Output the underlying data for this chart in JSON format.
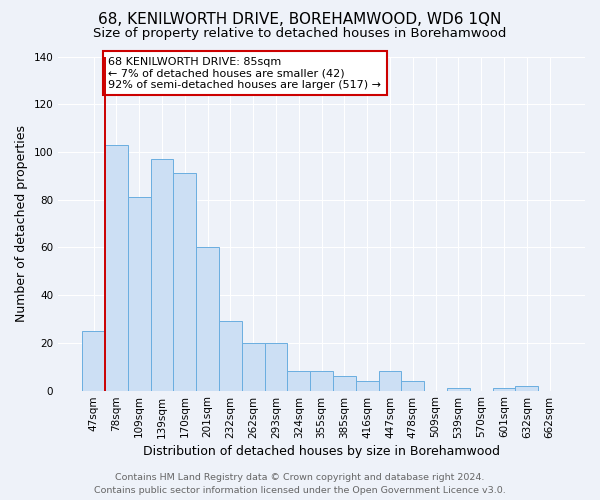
{
  "title": "68, KENILWORTH DRIVE, BOREHAMWOOD, WD6 1QN",
  "subtitle": "Size of property relative to detached houses in Borehamwood",
  "xlabel": "Distribution of detached houses by size in Borehamwood",
  "ylabel": "Number of detached properties",
  "categories": [
    "47sqm",
    "78sqm",
    "109sqm",
    "139sqm",
    "170sqm",
    "201sqm",
    "232sqm",
    "262sqm",
    "293sqm",
    "324sqm",
    "355sqm",
    "385sqm",
    "416sqm",
    "447sqm",
    "478sqm",
    "509sqm",
    "539sqm",
    "570sqm",
    "601sqm",
    "632sqm",
    "662sqm"
  ],
  "values": [
    25,
    103,
    81,
    97,
    91,
    60,
    29,
    20,
    20,
    8,
    8,
    6,
    4,
    8,
    4,
    0,
    1,
    0,
    1,
    2,
    0
  ],
  "bar_color": "#ccdff4",
  "bar_edge_color": "#6aaee0",
  "vline_x_index": 1,
  "vline_color": "#cc0000",
  "ylim": [
    0,
    140
  ],
  "yticks": [
    0,
    20,
    40,
    60,
    80,
    100,
    120,
    140
  ],
  "annotation_text": "68 KENILWORTH DRIVE: 85sqm\n← 7% of detached houses are smaller (42)\n92% of semi-detached houses are larger (517) →",
  "annotation_box_color": "#ffffff",
  "annotation_box_edge": "#cc0000",
  "footer_line1": "Contains HM Land Registry data © Crown copyright and database right 2024.",
  "footer_line2": "Contains public sector information licensed under the Open Government Licence v3.0.",
  "background_color": "#eef2f9",
  "grid_color": "#ffffff",
  "title_fontsize": 11,
  "subtitle_fontsize": 9.5,
  "axis_label_fontsize": 9,
  "tick_fontsize": 7.5,
  "annotation_fontsize": 8,
  "footer_fontsize": 6.8
}
